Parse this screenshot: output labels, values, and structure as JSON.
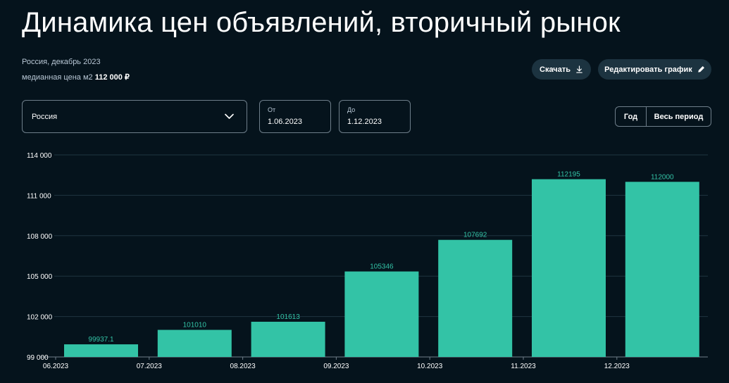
{
  "header": {
    "title": "Динамика цен объявлений, вторичный рынок",
    "subtitle": "Россия, декабрь 2023",
    "median_label": "медианная цена м2",
    "median_value": "112 000 ₽"
  },
  "actions": {
    "download_label": "Скачать",
    "edit_label": "Редактировать график"
  },
  "filters": {
    "region_value": "Россия",
    "from_label": "От",
    "from_value": "1.06.2023",
    "to_label": "До",
    "to_value": "1.12.2023",
    "period_year": "Год",
    "period_all": "Весь период"
  },
  "colors": {
    "bar": "#33c3a6",
    "bar_label": "#33c3a6",
    "grid": "#1f3440",
    "axis_text": "#ffffff"
  },
  "chart_data": {
    "type": "bar",
    "categories": [
      "06.2023",
      "07.2023",
      "08.2023",
      "09.2023",
      "10.2023",
      "11.2023",
      "12.2023"
    ],
    "values": [
      99937.1,
      101010,
      101613,
      105346,
      107692,
      112195,
      112000
    ],
    "value_labels": [
      "99937.1",
      "101010",
      "101613",
      "105346",
      "107692",
      "112195",
      "112000"
    ],
    "ylim": [
      99000,
      114000
    ],
    "yticks": [
      99000,
      102000,
      105000,
      108000,
      111000,
      114000
    ],
    "ytick_labels": [
      "99 000",
      "102 000",
      "105 000",
      "108 000",
      "111 000",
      "114 000"
    ],
    "grid": true
  }
}
